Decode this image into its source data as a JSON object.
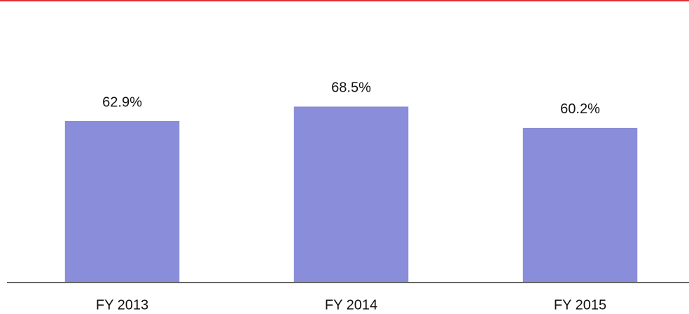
{
  "chart_data": {
    "type": "bar",
    "categories": [
      "FY 2013",
      "FY 2014",
      "FY 2015"
    ],
    "values": [
      62.9,
      68.5,
      60.2
    ],
    "value_labels": [
      "62.9%",
      "68.5%",
      "60.2%"
    ],
    "color": "#8a8dd9",
    "ylim": [
      0,
      110
    ]
  }
}
